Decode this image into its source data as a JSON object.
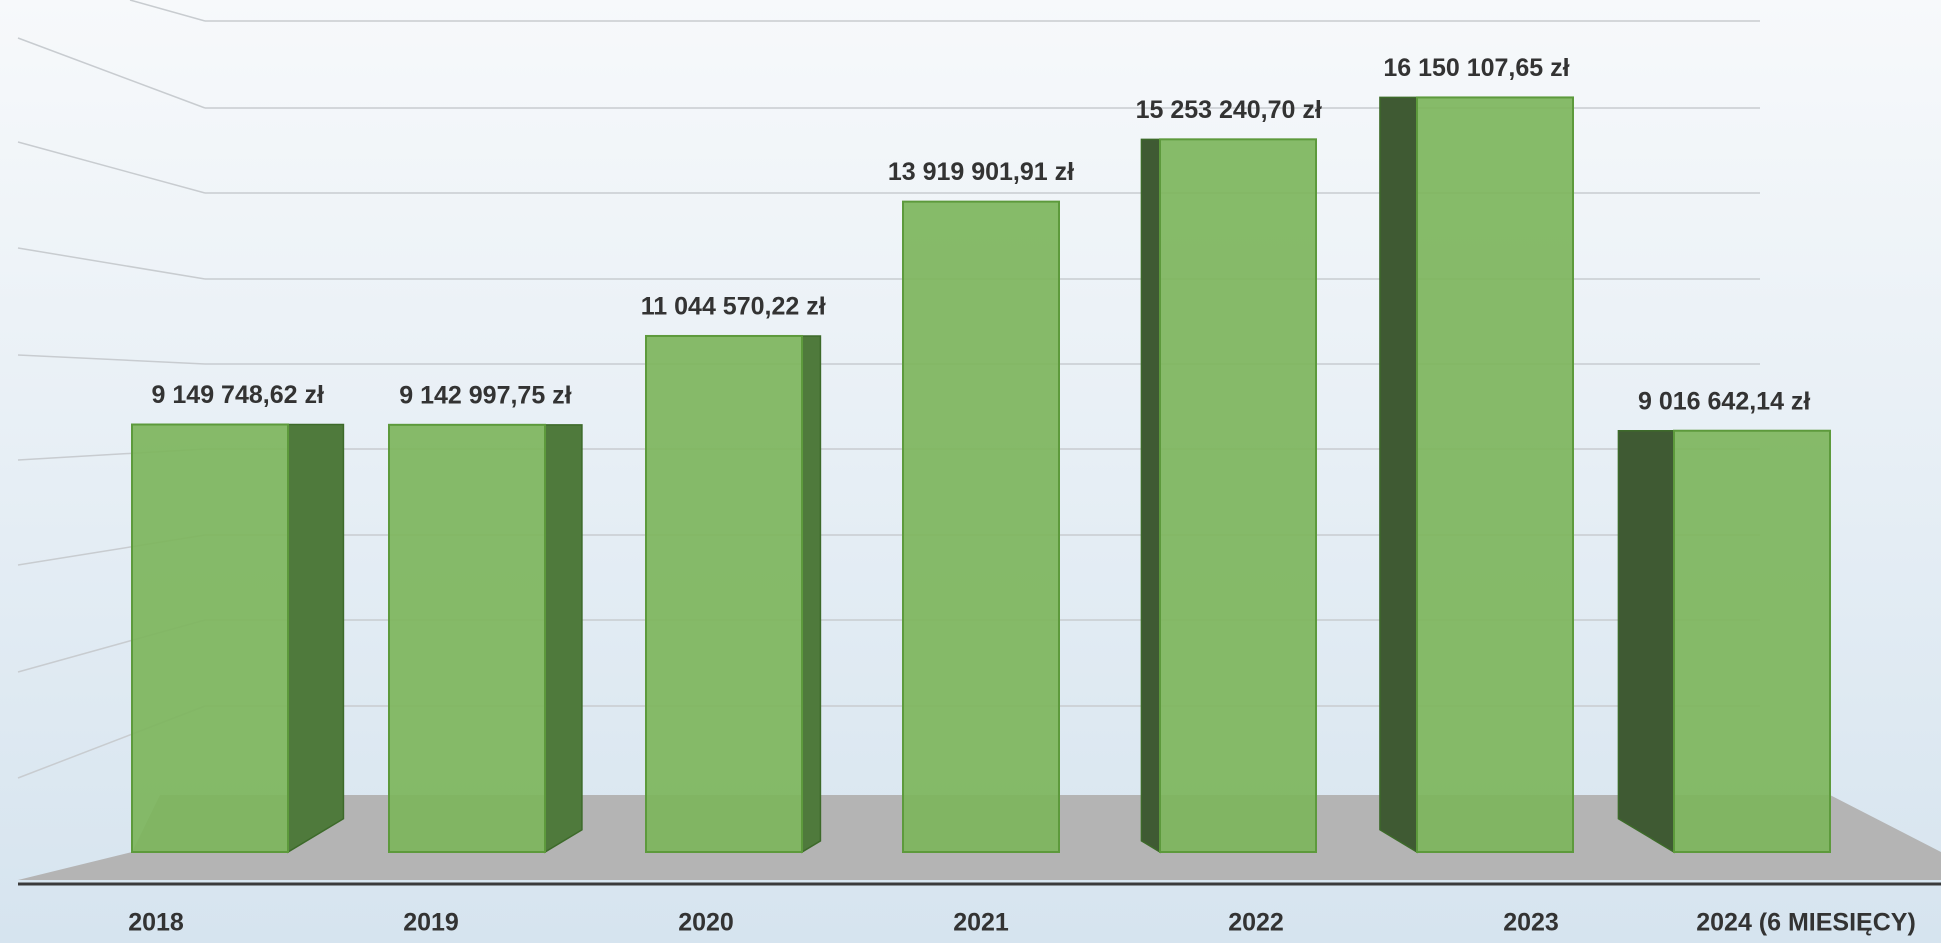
{
  "chart_data": {
    "type": "bar3d",
    "categories": [
      "2018",
      "2019",
      "2020",
      "2021",
      "2022",
      "2023",
      "2024 (6 MIESIĘCY)"
    ],
    "values": [
      9149748.62,
      9142997.75,
      11044570.22,
      13919901.91,
      15253240.7,
      16150107.65,
      9016642.14
    ],
    "value_labels": [
      "9 149 748,62 zł",
      "9 142 997,75 zł",
      "11 044 570,22 zł",
      "13 919 901,91 zł",
      "15 253 240,70 zł",
      "16 150 107,65 zł",
      "9 016 642,14 zł"
    ],
    "color": "#7db55c",
    "ylim": [
      0,
      18000000
    ]
  }
}
